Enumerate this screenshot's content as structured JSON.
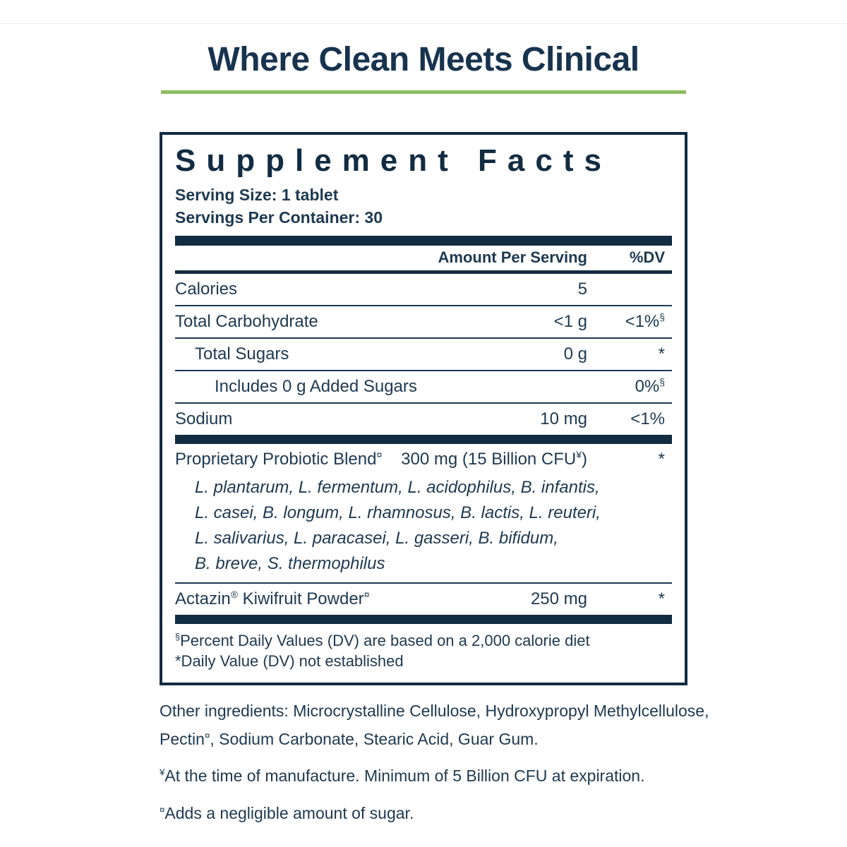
{
  "page": {
    "title": "Where Clean Meets Clinical",
    "accent_green": "#8cbe5f",
    "navy": "#122c42"
  },
  "panel": {
    "title": "Supplement Facts",
    "serving_size": "Serving Size: 1 tablet",
    "servings_per_container": "Servings Per Container: 30",
    "columns": {
      "amount": "Amount Per Serving",
      "dv": "%DV"
    },
    "rows": [
      {
        "indent": 0,
        "label": [
          {
            "t": "Calories"
          }
        ],
        "amount": [
          {
            "t": "5"
          }
        ],
        "dv": [],
        "divider_after": "thin"
      },
      {
        "indent": 0,
        "label": [
          {
            "t": "Total Carbohydrate"
          }
        ],
        "amount": [
          {
            "t": "<1 g"
          }
        ],
        "dv": [
          {
            "t": "<1%"
          },
          {
            "s": "§"
          }
        ],
        "divider_after": "thin"
      },
      {
        "indent": 1,
        "label": [
          {
            "t": "Total Sugars"
          }
        ],
        "amount": [
          {
            "t": "0 g"
          }
        ],
        "dv": [
          {
            "t": "*"
          }
        ],
        "divider_after": "thin"
      },
      {
        "indent": 2,
        "label": [
          {
            "t": "Includes 0 g Added Sugars"
          }
        ],
        "amount": [],
        "dv": [
          {
            "t": "0%"
          },
          {
            "s": "§"
          }
        ],
        "divider_after": "thin"
      },
      {
        "indent": 0,
        "label": [
          {
            "t": "Sodium"
          }
        ],
        "amount": [
          {
            "t": "10 mg"
          }
        ],
        "dv": [
          {
            "t": "<1%"
          }
        ],
        "divider_after": "thick"
      },
      {
        "indent": 0,
        "label": [
          {
            "t": "Proprietary Probiotic Blend"
          },
          {
            "s": "¤"
          }
        ],
        "amount": [
          {
            "t": "300 mg (15 Billion CFU"
          },
          {
            "s": "¥"
          },
          {
            "t": ")"
          }
        ],
        "dv": [
          {
            "t": "*"
          }
        ],
        "sub_lines": [
          "L. plantarum, L. fermentum, L. acidophilus, B. infantis,",
          "L. casei, B. longum, L. rhamnosus, B. lactis, L. reuteri,",
          "L. salivarius, L. paracasei, L. gasseri, B. bifidum,",
          "B. breve, S. thermophilus"
        ],
        "divider_after": "thin"
      },
      {
        "indent": 0,
        "label": [
          {
            "t": "Actazin"
          },
          {
            "s": "®"
          },
          {
            "t": " Kiwifruit Powder"
          },
          {
            "s": "¤"
          }
        ],
        "amount": [
          {
            "t": "250 mg"
          }
        ],
        "dv": [
          {
            "t": "*"
          }
        ],
        "divider_after": "thick"
      }
    ],
    "footnotes": [
      [
        {
          "s": "§"
        },
        {
          "t": "Percent Daily Values (DV) are based on a 2,000 calorie diet"
        }
      ],
      [
        {
          "t": "*Daily Value (DV) not established"
        }
      ]
    ]
  },
  "notes": [
    [
      {
        "t": "Other ingredients: Microcrystalline Cellulose, Hydroxypropyl Methylcellulose,"
      },
      {
        "br": true
      },
      {
        "t": "Pectin"
      },
      {
        "s": "¤"
      },
      {
        "t": ", Sodium Carbonate, Stearic Acid, Guar Gum."
      }
    ],
    [
      {
        "s": "¥"
      },
      {
        "t": "At the time of manufacture. Minimum of 5 Billion CFU at expiration."
      }
    ],
    [
      {
        "s": "¤"
      },
      {
        "t": "Adds a negligible amount of sugar."
      }
    ]
  ]
}
